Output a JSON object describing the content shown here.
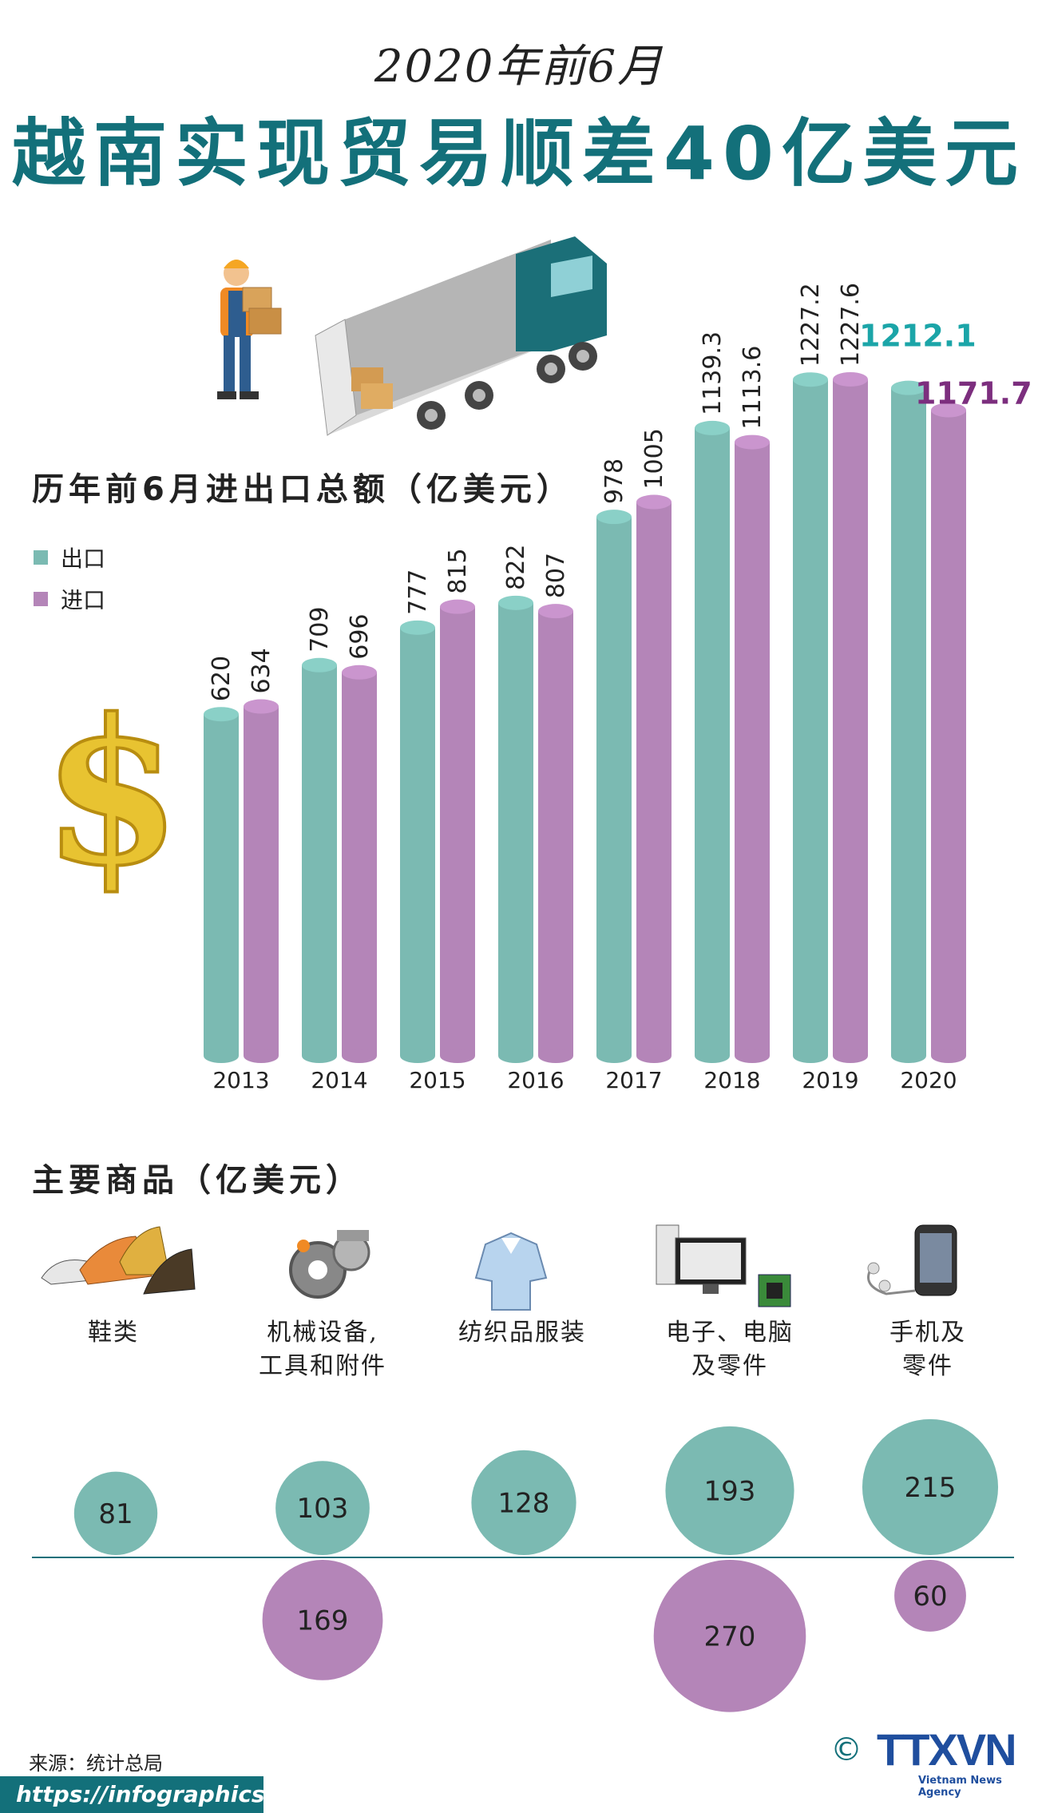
{
  "header": {
    "supertitle": "2020年前6月",
    "title": "越南实现贸易顺差40亿美元"
  },
  "chart_section": {
    "title": "历年前6月进出口总额（亿美元）",
    "legend": [
      {
        "label": "出口",
        "color": "#7bbab2"
      },
      {
        "label": "进口",
        "color": "#b485b8"
      }
    ]
  },
  "chart_data": {
    "type": "bar",
    "title": "历年前6月进出口总额（亿美元）",
    "categories": [
      "2013",
      "2014",
      "2015",
      "2016",
      "2017",
      "2018",
      "2019",
      "2020"
    ],
    "series": [
      {
        "name": "出口",
        "values": [
          620,
          709,
          777,
          822,
          978,
          1139.3,
          1227.2,
          1212.1
        ],
        "color": "#7bbab2"
      },
      {
        "name": "进口",
        "values": [
          634,
          696,
          815,
          807,
          1005,
          1113.6,
          1227.6,
          1171.7
        ],
        "color": "#b485b8"
      }
    ],
    "value_labels": {
      "export": [
        "620",
        "709",
        "777",
        "822",
        "978",
        "1139.3",
        "1227.2",
        "1212.1"
      ],
      "import": [
        "634",
        "696",
        "815",
        "807",
        "1005",
        "1113.6",
        "1227.6",
        "1171.7"
      ]
    },
    "highlight_colors": {
      "export": "#1ba5a8",
      "import": "#7c2e7e"
    },
    "ylim": [
      0,
      1300
    ],
    "legend_position": "top-left",
    "grid": false
  },
  "goods_section": {
    "title": "主要商品（亿美元）",
    "items": [
      {
        "label_lines": [
          "鞋类"
        ],
        "icon": "shoes-icon",
        "export": 81,
        "import": null,
        "export_label": "81",
        "import_label": ""
      },
      {
        "label_lines": [
          "机械设备,",
          "工具和附件"
        ],
        "icon": "machinery-gears-icon",
        "export": 103,
        "import": 169,
        "export_label": "103",
        "import_label": "169"
      },
      {
        "label_lines": [
          "纺织品服装"
        ],
        "icon": "shirt-icon",
        "export": 128,
        "import": null,
        "export_label": "128",
        "import_label": ""
      },
      {
        "label_lines": [
          "电子、电脑",
          "及零件"
        ],
        "icon": "computer-icon",
        "export": 193,
        "import": 270,
        "export_label": "193",
        "import_label": "270"
      },
      {
        "label_lines": [
          "手机及",
          "零件"
        ],
        "icon": "mobile-phone-icon",
        "export": 215,
        "import": 60,
        "export_label": "215",
        "import_label": "60"
      }
    ]
  },
  "footer": {
    "source": "来源：统计总局",
    "url": "https://infographics.vn",
    "copyright_symbol": "©",
    "logo": "TTXVN",
    "logo_sub": "Vietnam News Agency"
  },
  "colors": {
    "export": "#7bbab2",
    "import": "#b485b8",
    "brand": "#13707a",
    "axis_line": "#13707a"
  }
}
